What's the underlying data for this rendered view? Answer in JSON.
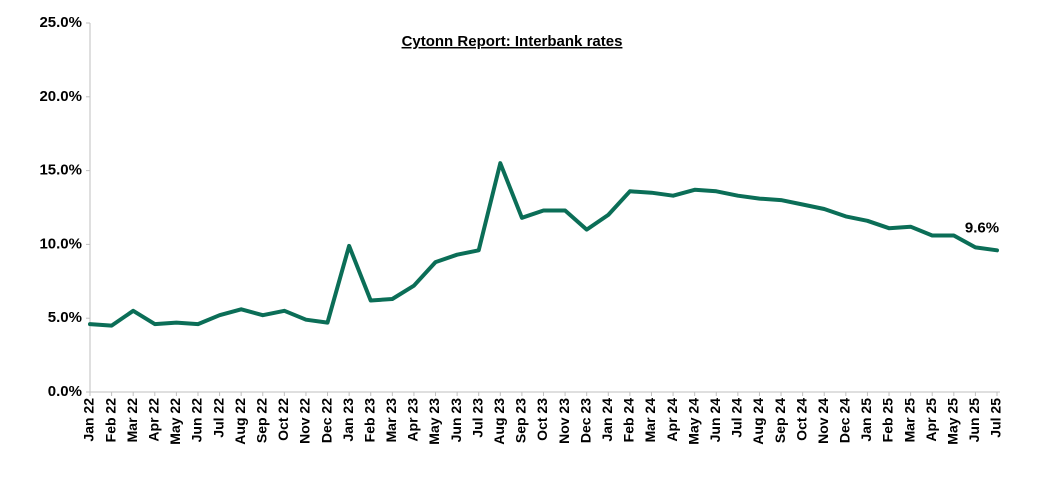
{
  "chart_data": {
    "type": "line",
    "title": "Cytonn Report: Interbank rates",
    "categories": [
      "Jan 22",
      "Feb 22",
      "Mar 22",
      "Apr 22",
      "May 22",
      "Jun 22",
      "Jul 22",
      "Aug 22",
      "Sep 22",
      "Oct 22",
      "Nov 22",
      "Dec 22",
      "Jan 23",
      "Feb 23",
      "Mar 23",
      "Apr 23",
      "May 23",
      "Jun 23",
      "Jul 23",
      "Aug 23",
      "Sep 23",
      "Oct 23",
      "Nov 23",
      "Dec 23",
      "Jan 24",
      "Feb 24",
      "Mar 24",
      "Apr 24",
      "May 24",
      "Jun 24",
      "Jul 24",
      "Aug 24",
      "Sep 24",
      "Oct 24",
      "Nov 24",
      "Dec 24",
      "Jan 25",
      "Feb 25",
      "Mar 25",
      "Apr 25",
      "May 25",
      "Jun 25",
      "Jul 25"
    ],
    "series": [
      {
        "name": "Interbank rate",
        "color": "#0b6e57",
        "values": [
          4.6,
          4.5,
          5.5,
          4.6,
          4.7,
          4.6,
          5.2,
          5.6,
          5.2,
          5.5,
          4.9,
          4.7,
          9.9,
          6.2,
          6.3,
          7.2,
          8.8,
          9.3,
          9.6,
          15.5,
          11.8,
          12.3,
          12.3,
          11.0,
          12.0,
          13.6,
          13.5,
          13.3,
          13.7,
          13.6,
          13.3,
          13.1,
          13.0,
          12.7,
          12.4,
          11.9,
          11.6,
          11.1,
          11.2,
          10.6,
          10.6,
          9.8,
          9.6
        ],
        "value_labels": [
          null,
          null,
          null,
          null,
          null,
          null,
          null,
          null,
          null,
          null,
          null,
          null,
          null,
          null,
          null,
          null,
          null,
          null,
          null,
          null,
          null,
          null,
          null,
          null,
          null,
          null,
          null,
          null,
          null,
          null,
          null,
          null,
          null,
          null,
          null,
          null,
          null,
          null,
          null,
          null,
          null,
          null,
          "9.6%"
        ]
      }
    ],
    "ylim": [
      0,
      25
    ],
    "yticks": [
      {
        "value": 0,
        "label": "0.0%"
      },
      {
        "value": 5,
        "label": "5.0%"
      },
      {
        "value": 10,
        "label": "10.0%"
      },
      {
        "value": 15,
        "label": "15.0%"
      },
      {
        "value": 20,
        "label": "20.0%"
      },
      {
        "value": 25,
        "label": "25.0%"
      }
    ],
    "grid": false
  }
}
